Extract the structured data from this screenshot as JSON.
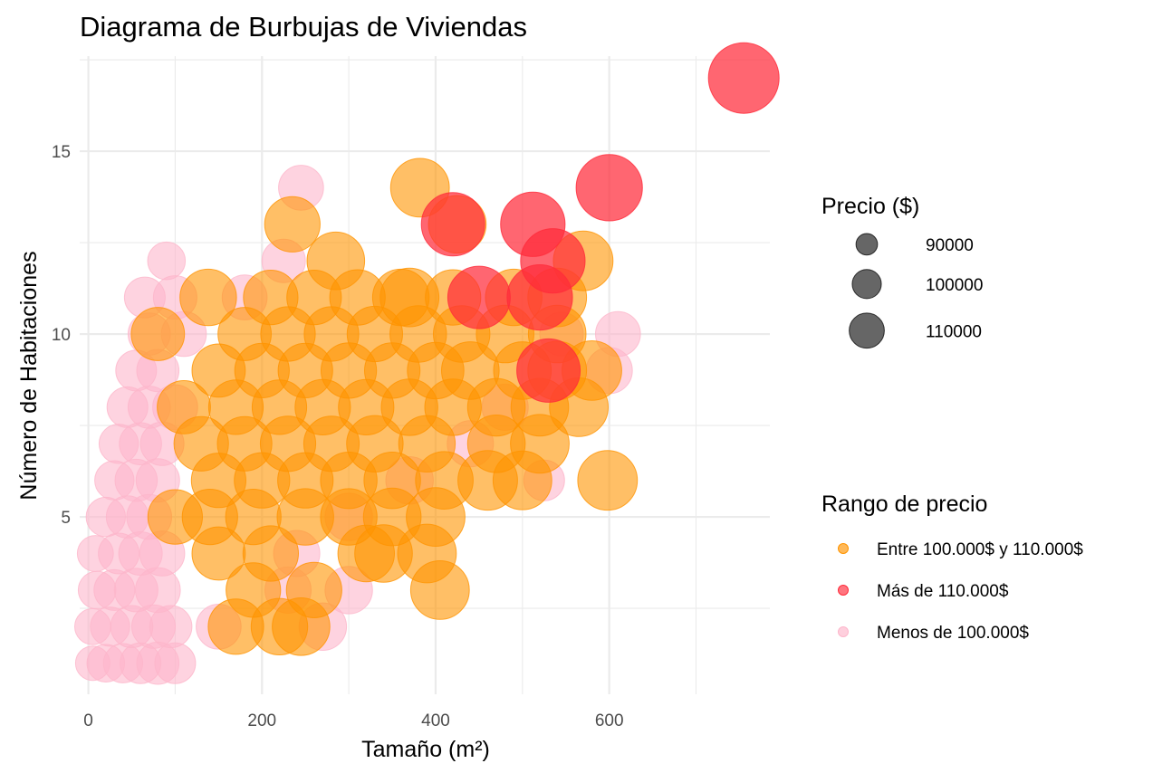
{
  "chart_data": {
    "type": "scatter",
    "subtype": "bubble",
    "title": "Diagrama de Burbujas de Viviendas",
    "xlabel": "Tamaño (m²)",
    "ylabel": "Número de Habitaciones",
    "xlim": [
      -10,
      785
    ],
    "ylim": [
      0.15,
      17.6
    ],
    "x_ticks": [
      0,
      200,
      400,
      600
    ],
    "x_tick_labels": [
      "0",
      "200",
      "400",
      "600"
    ],
    "y_ticks": [
      5,
      10,
      15
    ],
    "y_tick_labels": [
      "5",
      "10",
      "15"
    ],
    "grid": true,
    "legend_position": "right",
    "size_legend": {
      "title": "Precio ($)",
      "entries": [
        {
          "value": 90000,
          "label": "90000"
        },
        {
          "value": 100000,
          "label": "100000"
        },
        {
          "value": 110000,
          "label": "110000"
        }
      ]
    },
    "color_legend": {
      "title": "Rango de precio",
      "entries": [
        {
          "key": "mid",
          "label": "Entre 100.000$ y 110.000$",
          "color": "#FF9400"
        },
        {
          "key": "high",
          "label": "Más de 110.000$",
          "color": "#FF2B3A"
        },
        {
          "key": "low",
          "label": "Menos de 100.000$",
          "color": "#FDB6CB"
        }
      ]
    },
    "series": [
      {
        "key": "low",
        "name": "Menos de 100.000$",
        "points": [
          {
            "x": 5,
            "y": 1,
            "price": 88000
          },
          {
            "x": 20,
            "y": 1,
            "price": 90000
          },
          {
            "x": 40,
            "y": 1,
            "price": 91000
          },
          {
            "x": 60,
            "y": 1,
            "price": 92000
          },
          {
            "x": 80,
            "y": 1,
            "price": 93000
          },
          {
            "x": 100,
            "y": 1,
            "price": 92000
          },
          {
            "x": 5,
            "y": 2,
            "price": 89000
          },
          {
            "x": 25,
            "y": 2,
            "price": 91000
          },
          {
            "x": 50,
            "y": 2,
            "price": 93000
          },
          {
            "x": 75,
            "y": 2,
            "price": 94000
          },
          {
            "x": 95,
            "y": 2,
            "price": 93000
          },
          {
            "x": 10,
            "y": 3,
            "price": 90000
          },
          {
            "x": 30,
            "y": 3,
            "price": 92000
          },
          {
            "x": 55,
            "y": 3,
            "price": 94000
          },
          {
            "x": 80,
            "y": 3,
            "price": 95000
          },
          {
            "x": 8,
            "y": 4,
            "price": 89000
          },
          {
            "x": 35,
            "y": 4,
            "price": 92000
          },
          {
            "x": 60,
            "y": 4,
            "price": 94000
          },
          {
            "x": 85,
            "y": 4,
            "price": 95000
          },
          {
            "x": 20,
            "y": 5,
            "price": 91000
          },
          {
            "x": 45,
            "y": 5,
            "price": 93000
          },
          {
            "x": 70,
            "y": 5,
            "price": 95000
          },
          {
            "x": 30,
            "y": 6,
            "price": 91000
          },
          {
            "x": 55,
            "y": 6,
            "price": 93000
          },
          {
            "x": 80,
            "y": 6,
            "price": 94000
          },
          {
            "x": 35,
            "y": 7,
            "price": 91000
          },
          {
            "x": 60,
            "y": 7,
            "price": 93000
          },
          {
            "x": 85,
            "y": 7,
            "price": 94000
          },
          {
            "x": 45,
            "y": 8,
            "price": 92000
          },
          {
            "x": 70,
            "y": 8,
            "price": 93000
          },
          {
            "x": 100,
            "y": 8,
            "price": 95000
          },
          {
            "x": 55,
            "y": 9,
            "price": 92000
          },
          {
            "x": 80,
            "y": 9,
            "price": 93000
          },
          {
            "x": 70,
            "y": 10,
            "price": 93000
          },
          {
            "x": 110,
            "y": 10,
            "price": 95000
          },
          {
            "x": 65,
            "y": 11,
            "price": 92000
          },
          {
            "x": 100,
            "y": 11,
            "price": 94000
          },
          {
            "x": 180,
            "y": 11,
            "price": 95000
          },
          {
            "x": 90,
            "y": 12,
            "price": 90000
          },
          {
            "x": 225,
            "y": 12,
            "price": 94000
          },
          {
            "x": 245,
            "y": 14,
            "price": 95000
          },
          {
            "x": 150,
            "y": 2,
            "price": 95000
          },
          {
            "x": 270,
            "y": 2,
            "price": 97000
          },
          {
            "x": 230,
            "y": 3,
            "price": 96000
          },
          {
            "x": 300,
            "y": 3,
            "price": 97000
          },
          {
            "x": 240,
            "y": 4,
            "price": 96000
          },
          {
            "x": 300,
            "y": 5,
            "price": 97000
          },
          {
            "x": 440,
            "y": 7,
            "price": 96000
          },
          {
            "x": 480,
            "y": 8,
            "price": 96000
          },
          {
            "x": 525,
            "y": 6,
            "price": 92000
          },
          {
            "x": 545,
            "y": 10,
            "price": 94000
          },
          {
            "x": 610,
            "y": 10,
            "price": 95000
          },
          {
            "x": 600,
            "y": 9,
            "price": 96000
          },
          {
            "x": 370,
            "y": 6,
            "price": 97000
          }
        ]
      },
      {
        "key": "mid",
        "name": "Entre 100.000$ y 110.000$",
        "points": [
          {
            "x": 170,
            "y": 2,
            "price": 104000
          },
          {
            "x": 220,
            "y": 2,
            "price": 105000
          },
          {
            "x": 245,
            "y": 2,
            "price": 106000
          },
          {
            "x": 190,
            "y": 3,
            "price": 103000
          },
          {
            "x": 260,
            "y": 3,
            "price": 104000
          },
          {
            "x": 150,
            "y": 4,
            "price": 102000
          },
          {
            "x": 210,
            "y": 4,
            "price": 104000
          },
          {
            "x": 320,
            "y": 4,
            "price": 105000
          },
          {
            "x": 340,
            "y": 4,
            "price": 106000
          },
          {
            "x": 390,
            "y": 4,
            "price": 107000
          },
          {
            "x": 100,
            "y": 5,
            "price": 103000
          },
          {
            "x": 140,
            "y": 5,
            "price": 104000
          },
          {
            "x": 190,
            "y": 5,
            "price": 104000
          },
          {
            "x": 250,
            "y": 5,
            "price": 105000
          },
          {
            "x": 300,
            "y": 5,
            "price": 105000
          },
          {
            "x": 350,
            "y": 5,
            "price": 106000
          },
          {
            "x": 400,
            "y": 5,
            "price": 107000
          },
          {
            "x": 150,
            "y": 6,
            "price": 103000
          },
          {
            "x": 200,
            "y": 6,
            "price": 104000
          },
          {
            "x": 250,
            "y": 6,
            "price": 104000
          },
          {
            "x": 300,
            "y": 6,
            "price": 105000
          },
          {
            "x": 350,
            "y": 6,
            "price": 105000
          },
          {
            "x": 410,
            "y": 6,
            "price": 106000
          },
          {
            "x": 460,
            "y": 6,
            "price": 108000
          },
          {
            "x": 500,
            "y": 6,
            "price": 107000
          },
          {
            "x": 598,
            "y": 6,
            "price": 108000
          },
          {
            "x": 130,
            "y": 7,
            "price": 103000
          },
          {
            "x": 180,
            "y": 7,
            "price": 103000
          },
          {
            "x": 230,
            "y": 7,
            "price": 104000
          },
          {
            "x": 280,
            "y": 7,
            "price": 104000
          },
          {
            "x": 330,
            "y": 7,
            "price": 105000
          },
          {
            "x": 390,
            "y": 7,
            "price": 105000
          },
          {
            "x": 470,
            "y": 7,
            "price": 106000
          },
          {
            "x": 520,
            "y": 7,
            "price": 107000
          },
          {
            "x": 110,
            "y": 8,
            "price": 102000
          },
          {
            "x": 170,
            "y": 8,
            "price": 103000
          },
          {
            "x": 220,
            "y": 8,
            "price": 103000
          },
          {
            "x": 270,
            "y": 8,
            "price": 104000
          },
          {
            "x": 320,
            "y": 8,
            "price": 104000
          },
          {
            "x": 370,
            "y": 8,
            "price": 105000
          },
          {
            "x": 420,
            "y": 8,
            "price": 105000
          },
          {
            "x": 470,
            "y": 8,
            "price": 106000
          },
          {
            "x": 520,
            "y": 8,
            "price": 106000
          },
          {
            "x": 565,
            "y": 8,
            "price": 107000
          },
          {
            "x": 150,
            "y": 9,
            "price": 102000
          },
          {
            "x": 200,
            "y": 9,
            "price": 103000
          },
          {
            "x": 250,
            "y": 9,
            "price": 103000
          },
          {
            "x": 300,
            "y": 9,
            "price": 104000
          },
          {
            "x": 350,
            "y": 9,
            "price": 104000
          },
          {
            "x": 400,
            "y": 9,
            "price": 105000
          },
          {
            "x": 440,
            "y": 9,
            "price": 106000
          },
          {
            "x": 500,
            "y": 9,
            "price": 106000
          },
          {
            "x": 540,
            "y": 9,
            "price": 107000
          },
          {
            "x": 580,
            "y": 9,
            "price": 108000
          },
          {
            "x": 80,
            "y": 10,
            "price": 102000
          },
          {
            "x": 180,
            "y": 10,
            "price": 102000
          },
          {
            "x": 230,
            "y": 10,
            "price": 103000
          },
          {
            "x": 280,
            "y": 10,
            "price": 103000
          },
          {
            "x": 330,
            "y": 10,
            "price": 104000
          },
          {
            "x": 380,
            "y": 10,
            "price": 105000
          },
          {
            "x": 430,
            "y": 10,
            "price": 105000
          },
          {
            "x": 480,
            "y": 10,
            "price": 106000
          },
          {
            "x": 540,
            "y": 10,
            "price": 106000
          },
          {
            "x": 138,
            "y": 11,
            "price": 105000
          },
          {
            "x": 210,
            "y": 11,
            "price": 103000
          },
          {
            "x": 260,
            "y": 11,
            "price": 103000
          },
          {
            "x": 310,
            "y": 11,
            "price": 104000
          },
          {
            "x": 360,
            "y": 11,
            "price": 105000
          },
          {
            "x": 370,
            "y": 11,
            "price": 107000
          },
          {
            "x": 420,
            "y": 11,
            "price": 104000
          },
          {
            "x": 490,
            "y": 11,
            "price": 105000
          },
          {
            "x": 540,
            "y": 11,
            "price": 107000
          },
          {
            "x": 285,
            "y": 12,
            "price": 106000
          },
          {
            "x": 570,
            "y": 12,
            "price": 108000
          },
          {
            "x": 235,
            "y": 13,
            "price": 104000
          },
          {
            "x": 425,
            "y": 13,
            "price": 106000
          },
          {
            "x": 382,
            "y": 14,
            "price": 107000
          },
          {
            "x": 405,
            "y": 3,
            "price": 107000
          }
        ]
      },
      {
        "key": "high",
        "name": "Más de 110.000$",
        "points": [
          {
            "x": 450,
            "y": 11,
            "price": 111000
          },
          {
            "x": 420,
            "y": 13,
            "price": 112000
          },
          {
            "x": 512,
            "y": 13,
            "price": 113000
          },
          {
            "x": 520,
            "y": 11,
            "price": 114000
          },
          {
            "x": 535,
            "y": 12,
            "price": 113000
          },
          {
            "x": 530,
            "y": 9,
            "price": 112000
          },
          {
            "x": 600,
            "y": 14,
            "price": 115000
          },
          {
            "x": 755,
            "y": 17,
            "price": 120000
          }
        ]
      }
    ]
  }
}
